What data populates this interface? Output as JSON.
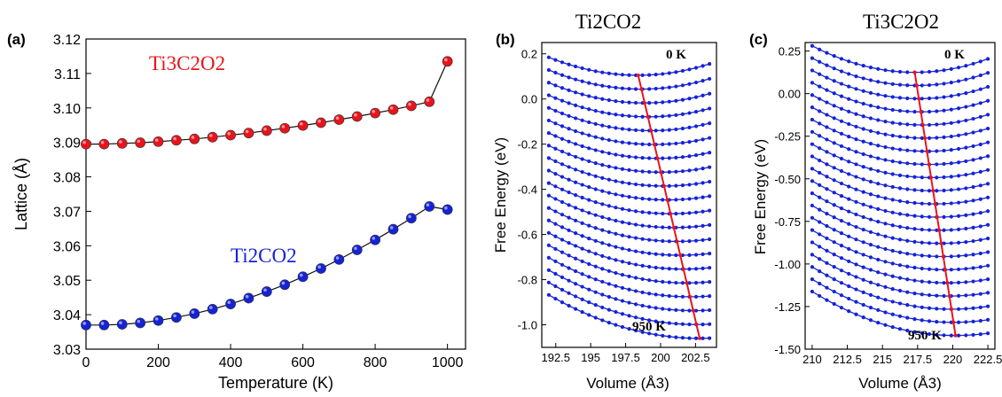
{
  "chart_data": [
    {
      "panel": "(a)",
      "type": "scatter",
      "xlabel": "Temperature (K)",
      "ylabel": "Lattice (Å)",
      "xlim": [
        0,
        1050
      ],
      "ylim": [
        3.03,
        3.12
      ],
      "xticks": [
        "0",
        "200",
        "400",
        "600",
        "800",
        "1000"
      ],
      "yticks": [
        "3.03",
        "3.04",
        "3.05",
        "3.06",
        "3.07",
        "3.08",
        "3.09",
        "3.10",
        "3.11",
        "3.12"
      ],
      "series": [
        {
          "name": "Ti3C2O2",
          "color": "#e8141c",
          "x": [
            0,
            50,
            100,
            150,
            200,
            250,
            300,
            350,
            400,
            450,
            500,
            550,
            600,
            650,
            700,
            750,
            800,
            850,
            900,
            950,
            1000
          ],
          "values": [
            3.0895,
            3.0895,
            3.0897,
            3.0899,
            3.0902,
            3.0906,
            3.091,
            3.0915,
            3.0921,
            3.0927,
            3.0934,
            3.0941,
            3.0949,
            3.0957,
            3.0966,
            3.0975,
            3.0985,
            3.0995,
            3.1006,
            3.1018,
            3.1135
          ]
        },
        {
          "name": "Ti2CO2",
          "color": "#1522d6",
          "x": [
            0,
            50,
            100,
            150,
            200,
            250,
            300,
            350,
            400,
            450,
            500,
            550,
            600,
            650,
            700,
            750,
            800,
            850,
            900,
            950,
            1000
          ],
          "values": [
            3.037,
            3.037,
            3.0372,
            3.0376,
            3.0383,
            3.0392,
            3.0403,
            3.0416,
            3.0431,
            3.0448,
            3.0467,
            3.0487,
            3.051,
            3.0534,
            3.056,
            3.0588,
            3.0617,
            3.0648,
            3.068,
            3.0714,
            3.0705
          ]
        }
      ],
      "labels": {
        "red": "Ti3C2O2",
        "blue": "Ti2CO2"
      }
    },
    {
      "panel": "(b)",
      "title": "Ti2CO2",
      "type": "line",
      "xlabel": "Volume (Å3)",
      "ylabel": "Free Energy (eV)",
      "xlim": [
        191.5,
        204
      ],
      "ylim": [
        -1.1,
        0.25
      ],
      "xticks": [
        "192.5",
        "195",
        "197.5",
        "200",
        "202.5"
      ],
      "yticks": [
        "0.2",
        "0.0",
        "-0.2",
        "-0.4",
        "-0.6",
        "-0.8",
        "-1.0"
      ],
      "curves": {
        "count": 20,
        "vmin": 192,
        "vmax": 203.5,
        "top_at_v0": 0.105,
        "bottom_at_v0": -1.06,
        "v0_start": 198.4,
        "v0_end": 202.8,
        "curvature": 0.00194
      },
      "annotations": {
        "top": "0 K",
        "bottom": "950 K"
      }
    },
    {
      "panel": "(c)",
      "title": "Ti3C2O2",
      "type": "line",
      "xlabel": "Volume (Å3)",
      "ylabel": "Free Energy (eV)",
      "xlim": [
        209.5,
        223
      ],
      "ylim": [
        -1.5,
        0.3
      ],
      "xticks": [
        "210",
        "212.5",
        "215",
        "217.5",
        "220",
        "222.5"
      ],
      "yticks": [
        "0.25",
        "0.00",
        "-0.25",
        "-0.50",
        "-0.75",
        "-1.00",
        "-1.25",
        "-1.50"
      ],
      "curves": {
        "count": 21,
        "vmin": 210,
        "vmax": 222.5,
        "top_at_v0": 0.125,
        "bottom_at_v0": -1.42,
        "v0_start": 217.3,
        "v0_end": 220.2,
        "curvature": 0.00292
      },
      "annotations": {
        "top": "0 K",
        "bottom": "950 K"
      }
    }
  ]
}
